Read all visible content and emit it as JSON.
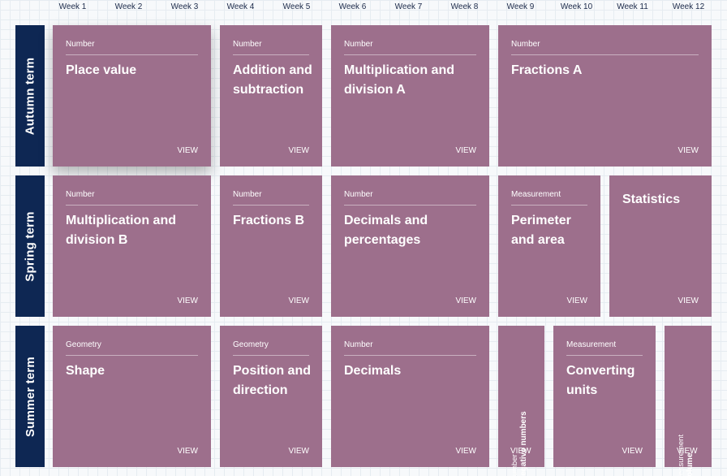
{
  "weeks": [
    "Week 1",
    "Week 2",
    "Week 3",
    "Week 4",
    "Week 5",
    "Week 6",
    "Week 7",
    "Week 8",
    "Week 9",
    "Week 10",
    "Week 11",
    "Week 12"
  ],
  "terms": [
    "Autumn term",
    "Spring term",
    "Summer term"
  ],
  "view_label": "VIEW",
  "autumn": [
    {
      "category": "Number",
      "title": "Place value"
    },
    {
      "category": "Number",
      "title": "Addition and subtraction"
    },
    {
      "category": "Number",
      "title": "Multiplication and division A"
    },
    {
      "category": "Number",
      "title": "Fractions A"
    }
  ],
  "spring": [
    {
      "category": "Number",
      "title": "Multiplication and division B"
    },
    {
      "category": "Number",
      "title": "Fractions B"
    },
    {
      "category": "Number",
      "title": "Decimals and percentages"
    },
    {
      "category": "Measurement",
      "title": "Perimeter and area"
    },
    {
      "category": "",
      "title": "Statistics"
    }
  ],
  "summer": [
    {
      "category": "Geometry",
      "title": "Shape"
    },
    {
      "category": "Geometry",
      "title": "Position and direction"
    },
    {
      "category": "Number",
      "title": "Decimals"
    },
    {
      "category": "Number",
      "title": "Negative numbers"
    },
    {
      "category": "Measurement",
      "title": "Converting units"
    },
    {
      "category": "Measurement",
      "title": "Volume"
    }
  ]
}
